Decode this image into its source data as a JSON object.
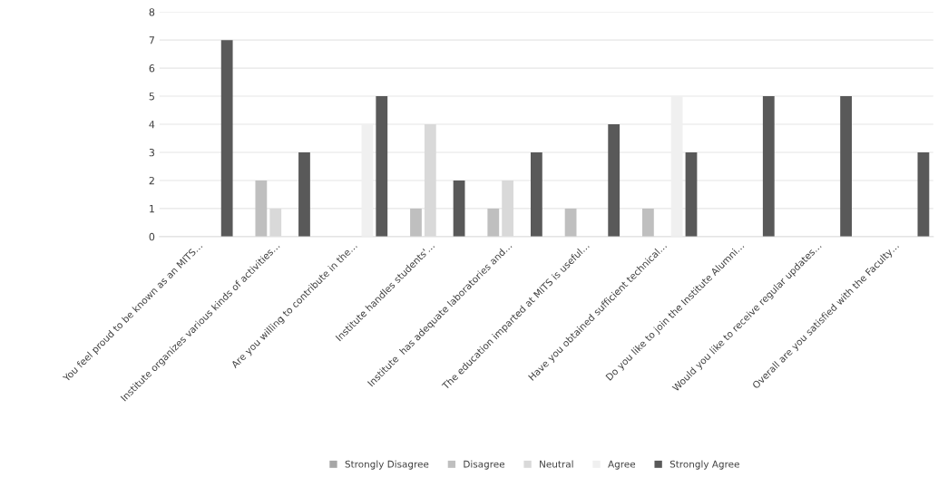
{
  "chart_data": {
    "type": "bar",
    "categories": [
      "You feel proud to be known as an MITS…",
      "Institute organizes various kinds of activities…",
      "Are you willing to contribute in the…",
      "Institute handles students'…",
      "Institute  has adequate laboratories and…",
      "The education imparted at MITS is useful…",
      "Have you obtained sufficient technical…",
      "Do you like to join the Institute Alumni…",
      "Would you like to receive regular updates…",
      "Overall are you satisfied with the Faculty…"
    ],
    "series": [
      {
        "name": "Strongly Disagree",
        "color": "#a6a6a6",
        "values": [
          0,
          0,
          0,
          0,
          0,
          0,
          0,
          0,
          0,
          0
        ]
      },
      {
        "name": "Disagree",
        "color": "#bfbfbf",
        "values": [
          0,
          2,
          0,
          1,
          1,
          1,
          1,
          0,
          0,
          0
        ]
      },
      {
        "name": "Neutral",
        "color": "#d9d9d9",
        "values": [
          0,
          1,
          0,
          4,
          2,
          0,
          0,
          0,
          0,
          0
        ]
      },
      {
        "name": "Agree",
        "color": "#f0f0f0",
        "values": [
          0,
          0,
          4,
          0,
          0,
          0,
          5,
          0,
          0,
          0
        ]
      },
      {
        "name": "Strongly Agree",
        "color": "#595959",
        "values": [
          7,
          3,
          5,
          2,
          3,
          4,
          3,
          5,
          5,
          3
        ]
      }
    ],
    "ylim": [
      0,
      8
    ],
    "yticks": [
      0,
      1,
      2,
      3,
      4,
      5,
      6,
      7,
      8
    ],
    "grid": "y",
    "legend": "bottom"
  }
}
